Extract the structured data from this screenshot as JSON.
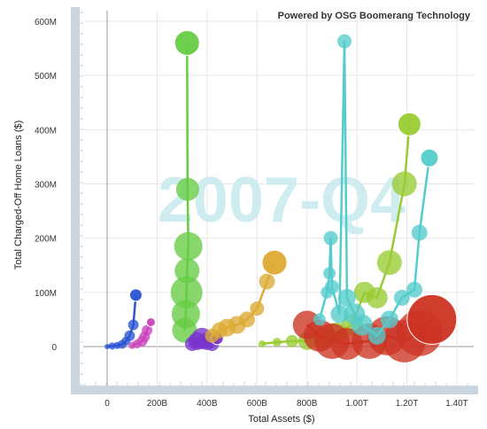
{
  "powered_by": "Powered by OSG Boomerang Technology",
  "colors": {
    "axis_band": "#c9d5df",
    "grid": "#e6e6e6",
    "zero_line": "#9a9a9a",
    "watermark": "#c7ebee"
  },
  "chart_data": {
    "type": "scatter",
    "subtype": "bubble-trails",
    "period_label": "2007-Q4",
    "xlabel": "Total Assets ($)",
    "ylabel": "Total Charged-Off Home Loans ($)",
    "xlim": [
      -130,
      1520
    ],
    "ylim": [
      -65,
      620
    ],
    "x_unit": "billions",
    "y_unit": "millions",
    "x_ticks": [
      {
        "value": 0,
        "label": "0"
      },
      {
        "value": 200,
        "label": "200B"
      },
      {
        "value": 400,
        "label": "400B"
      },
      {
        "value": 600,
        "label": "600B"
      },
      {
        "value": 800,
        "label": "800B"
      },
      {
        "value": 1000,
        "label": "1.00T"
      },
      {
        "value": 1200,
        "label": "1.20T"
      },
      {
        "value": 1400,
        "label": "1.40T"
      }
    ],
    "y_ticks": [
      {
        "value": 0,
        "label": "0"
      },
      {
        "value": 100,
        "label": "100M"
      },
      {
        "value": 200,
        "label": "200M"
      },
      {
        "value": 300,
        "label": "300M"
      },
      {
        "value": 400,
        "label": "400M"
      },
      {
        "value": 500,
        "label": "500M"
      },
      {
        "value": 600,
        "label": "600M"
      }
    ],
    "series": [
      {
        "color": "#2a55d1",
        "points": [
          {
            "x": 0,
            "y": 0,
            "s": 3
          },
          {
            "x": 20,
            "y": 1,
            "s": 4
          },
          {
            "x": 40,
            "y": 2,
            "s": 4
          },
          {
            "x": 60,
            "y": 4,
            "s": 5
          },
          {
            "x": 75,
            "y": 10,
            "s": 5
          },
          {
            "x": 90,
            "y": 20,
            "s": 6
          },
          {
            "x": 105,
            "y": 40,
            "s": 6
          },
          {
            "x": 115,
            "y": 95,
            "s": 7
          }
        ]
      },
      {
        "color": "#cc44bb",
        "points": [
          {
            "x": 100,
            "y": 2,
            "s": 4
          },
          {
            "x": 120,
            "y": 5,
            "s": 5
          },
          {
            "x": 140,
            "y": 10,
            "s": 6
          },
          {
            "x": 150,
            "y": 18,
            "s": 6
          },
          {
            "x": 160,
            "y": 30,
            "s": 6
          },
          {
            "x": 175,
            "y": 45,
            "s": 5
          }
        ]
      },
      {
        "color": "#66cc44",
        "points": [
          {
            "x": 310,
            "y": 30,
            "s": 14
          },
          {
            "x": 315,
            "y": 60,
            "s": 16
          },
          {
            "x": 318,
            "y": 100,
            "s": 18
          },
          {
            "x": 320,
            "y": 140,
            "s": 14
          },
          {
            "x": 325,
            "y": 185,
            "s": 16
          },
          {
            "x": 322,
            "y": 290,
            "s": 13
          },
          {
            "x": 320,
            "y": 560,
            "s": 14
          }
        ]
      },
      {
        "color": "#7733cc",
        "points": [
          {
            "x": 340,
            "y": 5,
            "s": 8
          },
          {
            "x": 360,
            "y": 10,
            "s": 10
          },
          {
            "x": 380,
            "y": 15,
            "s": 12
          },
          {
            "x": 400,
            "y": 10,
            "s": 10
          },
          {
            "x": 420,
            "y": 5,
            "s": 8
          },
          {
            "x": 440,
            "y": 15,
            "s": 7
          }
        ]
      },
      {
        "color": "#ddaa33",
        "points": [
          {
            "x": 420,
            "y": 20,
            "s": 8
          },
          {
            "x": 450,
            "y": 30,
            "s": 9
          },
          {
            "x": 480,
            "y": 35,
            "s": 10
          },
          {
            "x": 520,
            "y": 40,
            "s": 10
          },
          {
            "x": 560,
            "y": 50,
            "s": 9
          },
          {
            "x": 600,
            "y": 70,
            "s": 8
          },
          {
            "x": 640,
            "y": 120,
            "s": 9
          },
          {
            "x": 670,
            "y": 155,
            "s": 14
          }
        ]
      },
      {
        "color": "#99cc33",
        "points": [
          {
            "x": 620,
            "y": 5,
            "s": 4
          },
          {
            "x": 680,
            "y": 8,
            "s": 5
          },
          {
            "x": 740,
            "y": 10,
            "s": 7
          },
          {
            "x": 800,
            "y": 10,
            "s": 10
          },
          {
            "x": 860,
            "y": 15,
            "s": 12
          },
          {
            "x": 920,
            "y": 25,
            "s": 12
          },
          {
            "x": 980,
            "y": 40,
            "s": 12
          },
          {
            "x": 1030,
            "y": 100,
            "s": 12
          },
          {
            "x": 1080,
            "y": 90,
            "s": 12
          },
          {
            "x": 1130,
            "y": 155,
            "s": 14
          },
          {
            "x": 1190,
            "y": 300,
            "s": 14
          },
          {
            "x": 1210,
            "y": 410,
            "s": 13
          }
        ]
      },
      {
        "color": "#cc3322",
        "points": [
          {
            "x": 800,
            "y": 40,
            "s": 16
          },
          {
            "x": 850,
            "y": 20,
            "s": 18
          },
          {
            "x": 900,
            "y": 10,
            "s": 20
          },
          {
            "x": 960,
            "y": 5,
            "s": 18
          },
          {
            "x": 1050,
            "y": 10,
            "s": 20
          },
          {
            "x": 1120,
            "y": 20,
            "s": 22
          },
          {
            "x": 1190,
            "y": 10,
            "s": 24
          },
          {
            "x": 1250,
            "y": 25,
            "s": 26
          },
          {
            "x": 1300,
            "y": 50,
            "s": 28
          }
        ]
      },
      {
        "color": "#55cccc",
        "points": [
          {
            "x": 850,
            "y": 50,
            "s": 7
          },
          {
            "x": 880,
            "y": 100,
            "s": 7
          },
          {
            "x": 890,
            "y": 135,
            "s": 7
          },
          {
            "x": 895,
            "y": 200,
            "s": 8
          },
          {
            "x": 900,
            "y": 110,
            "s": 8
          },
          {
            "x": 930,
            "y": 60,
            "s": 10
          },
          {
            "x": 950,
            "y": 563,
            "s": 8
          },
          {
            "x": 960,
            "y": 90,
            "s": 10
          },
          {
            "x": 990,
            "y": 60,
            "s": 12
          },
          {
            "x": 1020,
            "y": 40,
            "s": 12
          },
          {
            "x": 1080,
            "y": 20,
            "s": 10
          },
          {
            "x": 1130,
            "y": 50,
            "s": 10
          },
          {
            "x": 1180,
            "y": 90,
            "s": 9
          },
          {
            "x": 1230,
            "y": 105,
            "s": 9
          },
          {
            "x": 1250,
            "y": 210,
            "s": 9
          },
          {
            "x": 1290,
            "y": 348,
            "s": 10
          }
        ]
      }
    ]
  }
}
